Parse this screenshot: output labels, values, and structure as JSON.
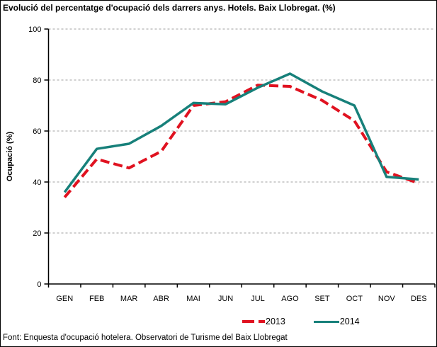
{
  "title": "Evolució del percentatge d'ocupació dels darrers anys. Hotels. Baix Llobregat. (%)",
  "footer": {
    "text": "Font: Enquesta d'ocupació hotelera. Observatori de Turisme del Baix Llobregat"
  },
  "colors": {
    "series_2013": "#e01220",
    "series_2014": "#17807a",
    "grid": "#a0a0a0",
    "axis": "#000000",
    "background": "#ffffff"
  },
  "chart_data": {
    "type": "line",
    "title": "Evolució del percentatge d'ocupació dels darrers anys. Hotels. Baix Llobregat. (%)",
    "xlabel": "",
    "ylabel": "Ocupació (%)",
    "ylim": [
      0,
      100
    ],
    "yticks": [
      0,
      20,
      40,
      60,
      80,
      100
    ],
    "grid": true,
    "legend_position": "bottom-right",
    "categories": [
      "GEN",
      "FEB",
      "MAR",
      "ABR",
      "MAI",
      "JUN",
      "JUL",
      "AGO",
      "SET",
      "OCT",
      "NOV",
      "DES"
    ],
    "series": [
      {
        "name": "2013",
        "style": "dashed",
        "color": "#e01220",
        "values": [
          34,
          49,
          45.5,
          52,
          70,
          71.5,
          78,
          77.5,
          72,
          64,
          44,
          39.5
        ]
      },
      {
        "name": "2014",
        "style": "solid",
        "color": "#17807a",
        "values": [
          36,
          53,
          55,
          62,
          71,
          70.5,
          77,
          82.5,
          75.5,
          70,
          42,
          41
        ]
      }
    ]
  }
}
